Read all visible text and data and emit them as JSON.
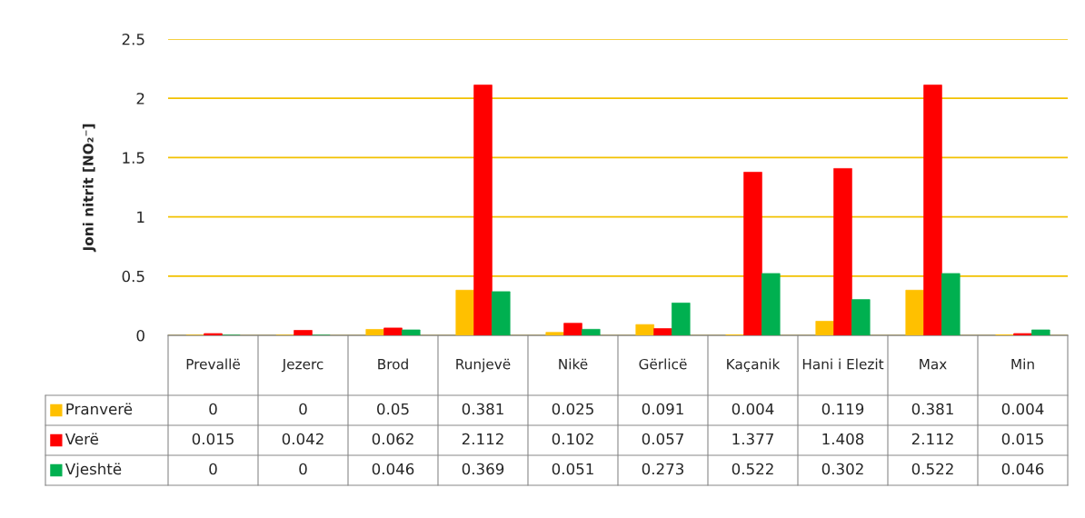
{
  "chart_data": {
    "type": "bar",
    "ylabel": "Joni nitrit [NO₂⁻]",
    "categories": [
      "Prevallë",
      "Jezerc",
      "Brod",
      "Runjevë",
      "Nikë",
      "Gërlicë",
      "Kaçanik",
      "Hani i Elezit",
      "Max",
      "Min"
    ],
    "series": [
      {
        "name": "Pranverë",
        "color": "#ffc000",
        "values": [
          0,
          0,
          0.05,
          0.381,
          0.025,
          0.091,
          0.004,
          0.119,
          0.381,
          0.004
        ]
      },
      {
        "name": "Verë",
        "color": "#ff0000",
        "values": [
          0.015,
          0.042,
          0.062,
          2.112,
          0.102,
          0.057,
          1.377,
          1.408,
          2.112,
          0.015
        ]
      },
      {
        "name": "Vjeshtë",
        "color": "#00b050",
        "values": [
          0,
          0,
          0.046,
          0.369,
          0.051,
          0.273,
          0.522,
          0.302,
          0.522,
          0.046
        ]
      }
    ],
    "ylim": [
      0,
      2.5
    ],
    "yticks": [
      0,
      0.5,
      1,
      1.5,
      2,
      2.5
    ],
    "grid": "y",
    "data_labels": true,
    "legend": "bottom"
  }
}
